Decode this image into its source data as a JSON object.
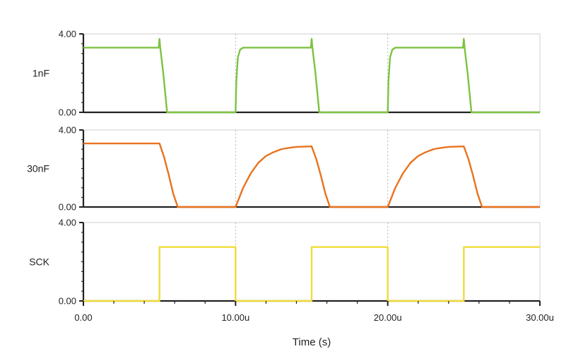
{
  "chart_data": {
    "type": "line",
    "xlabel": "Time (s)",
    "x_ticks": [
      "0.00",
      "10.00u",
      "20.00u",
      "30.00u"
    ],
    "x_tick_values": [
      0,
      10,
      20,
      30
    ],
    "x_unit": "u",
    "xlim": [
      0,
      30
    ],
    "grid_x": [
      10,
      20
    ],
    "grid": "dotted vertical at 10u and 20u",
    "panels": [
      {
        "label": "1nF",
        "color": "#7dc242",
        "ylim": [
          0,
          4
        ],
        "y_ticks": [
          "4.00",
          "0.00"
        ],
        "points": [
          [
            0,
            3.3
          ],
          [
            4.95,
            3.3
          ],
          [
            5.0,
            3.75
          ],
          [
            5.05,
            3.3
          ],
          [
            5.25,
            2.0
          ],
          [
            5.5,
            0.0
          ],
          [
            10.0,
            0.0
          ],
          [
            10.05,
            1.6
          ],
          [
            10.15,
            2.8
          ],
          [
            10.3,
            3.2
          ],
          [
            10.5,
            3.3
          ],
          [
            14.95,
            3.3
          ],
          [
            15.0,
            3.75
          ],
          [
            15.05,
            3.3
          ],
          [
            15.25,
            2.0
          ],
          [
            15.5,
            0.0
          ],
          [
            20.0,
            0.0
          ],
          [
            20.05,
            1.6
          ],
          [
            20.15,
            2.8
          ],
          [
            20.3,
            3.2
          ],
          [
            20.5,
            3.3
          ],
          [
            24.95,
            3.3
          ],
          [
            25.0,
            3.75
          ],
          [
            25.05,
            3.3
          ],
          [
            25.25,
            2.0
          ],
          [
            25.5,
            0.0
          ],
          [
            30.0,
            0.0
          ]
        ]
      },
      {
        "label": "30nF",
        "color": "#e8731f",
        "ylim": [
          0,
          4
        ],
        "y_ticks": [
          "4.00",
          "0.00"
        ],
        "points": [
          [
            0,
            3.3
          ],
          [
            5.0,
            3.3
          ],
          [
            5.3,
            2.6
          ],
          [
            5.6,
            1.7
          ],
          [
            5.9,
            0.7
          ],
          [
            6.2,
            0.0
          ],
          [
            10.0,
            0.0
          ],
          [
            10.5,
            1.0
          ],
          [
            11.0,
            1.75
          ],
          [
            11.5,
            2.3
          ],
          [
            12.0,
            2.65
          ],
          [
            12.5,
            2.85
          ],
          [
            13.0,
            3.0
          ],
          [
            13.5,
            3.07
          ],
          [
            14.0,
            3.12
          ],
          [
            15.0,
            3.15
          ],
          [
            15.3,
            2.5
          ],
          [
            15.6,
            1.65
          ],
          [
            15.9,
            0.7
          ],
          [
            16.2,
            0.0
          ],
          [
            20.0,
            0.0
          ],
          [
            20.5,
            1.0
          ],
          [
            21.0,
            1.75
          ],
          [
            21.5,
            2.3
          ],
          [
            22.0,
            2.65
          ],
          [
            22.5,
            2.85
          ],
          [
            23.0,
            3.0
          ],
          [
            23.5,
            3.07
          ],
          [
            24.0,
            3.12
          ],
          [
            25.0,
            3.15
          ],
          [
            25.3,
            2.5
          ],
          [
            25.6,
            1.65
          ],
          [
            25.9,
            0.7
          ],
          [
            26.2,
            0.0
          ],
          [
            30.0,
            0.0
          ]
        ]
      },
      {
        "label": "SCK",
        "color": "#efdc3a",
        "ylim": [
          0,
          4
        ],
        "y_ticks": [
          "4.00",
          "0.00"
        ],
        "points": [
          [
            0,
            0.0
          ],
          [
            5.0,
            0.0
          ],
          [
            5.0,
            2.75
          ],
          [
            10.0,
            2.75
          ],
          [
            10.0,
            0.0
          ],
          [
            15.0,
            0.0
          ],
          [
            15.0,
            2.75
          ],
          [
            20.0,
            2.75
          ],
          [
            20.0,
            0.0
          ],
          [
            25.0,
            0.0
          ],
          [
            25.0,
            2.75
          ],
          [
            30.0,
            2.75
          ]
        ]
      }
    ]
  }
}
